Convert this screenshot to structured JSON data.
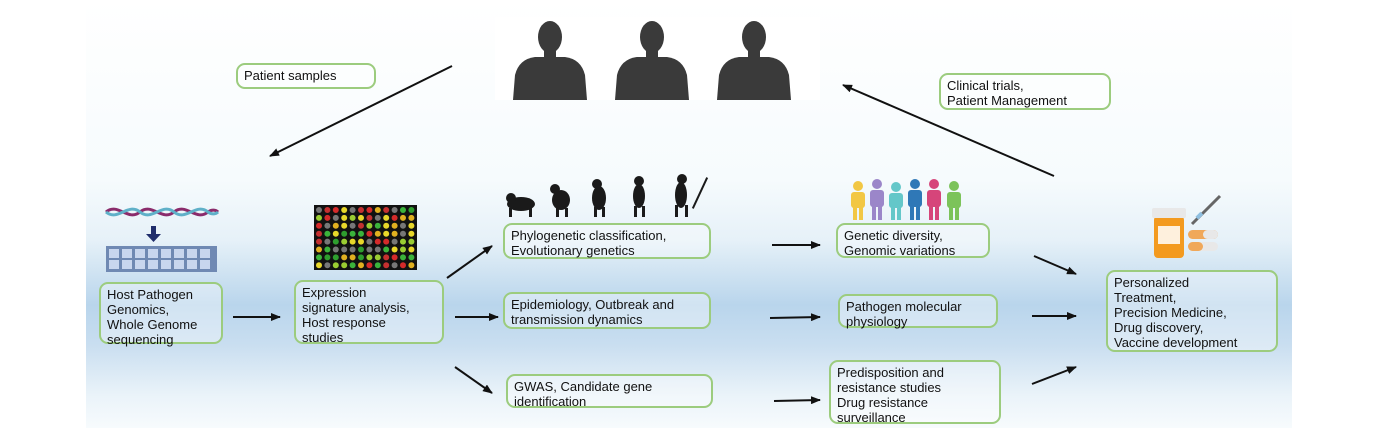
{
  "labels": {
    "patient_samples": "Patient samples",
    "clinical": [
      "Clinical trials,",
      "Patient Management"
    ],
    "host_pathogen": [
      "Host Pathogen",
      "Genomics,",
      "Whole Genome",
      "sequencing"
    ],
    "expression": [
      "Expression",
      "signature analysis,",
      "Host response",
      "studies"
    ],
    "phylogenetic": [
      "Phylogenetic classification,",
      "Evolutionary genetics"
    ],
    "epidemiology": [
      "Epidemiology, Outbreak and",
      "transmission dynamics"
    ],
    "gwas": [
      "GWAS, Candidate gene",
      "identification"
    ],
    "genetic_diversity": [
      "Genetic diversity,",
      "Genomic variations"
    ],
    "pathogen_physiology": [
      "Pathogen molecular",
      "physiology"
    ],
    "predisposition": [
      "Predisposition and",
      "resistance studies",
      "Drug resistance",
      "surveillance"
    ],
    "personalized": [
      "Personalized",
      "Treatment,",
      "Precision Medicine,",
      "Drug discovery,",
      "Vaccine development"
    ]
  },
  "icons": {
    "dna": "dna-helix-icon",
    "people": "human-torso-icon",
    "microarray": "microarray-icon",
    "evolution": "evolution-icon",
    "diversity": "diverse-people-icon",
    "medicine": "medicine-bottle-icon"
  },
  "colors": {
    "box_border": "#9ccc7e",
    "arrow": "#111111",
    "band": "#b9d5ec"
  }
}
